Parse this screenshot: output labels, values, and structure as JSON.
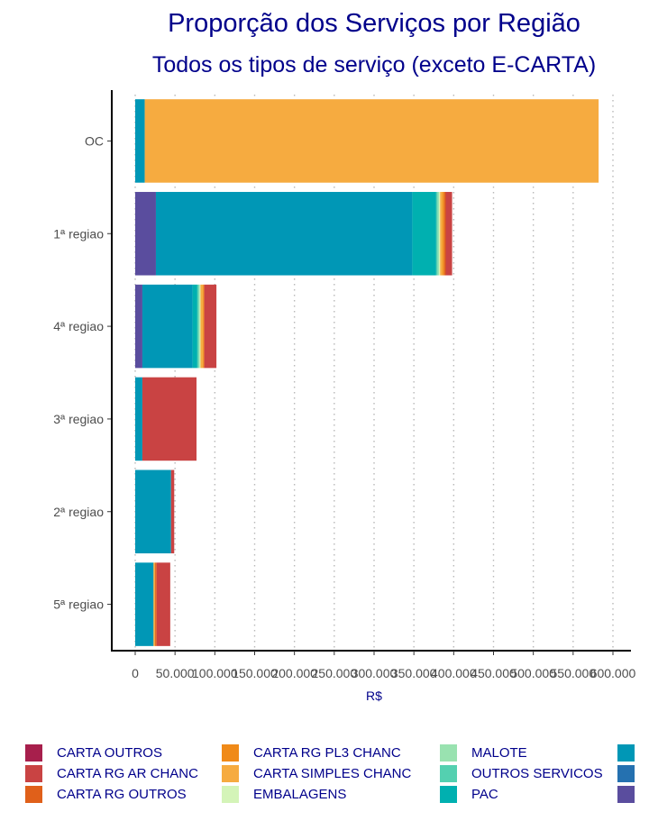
{
  "chart_data": {
    "type": "bar",
    "orientation": "horizontal",
    "stacked": true,
    "title": "Proporção dos Serviços por Região",
    "subtitle": "Todos os tipos de serviço (exceto E-CARTA)",
    "xlabel": "R$",
    "ylabel": "",
    "xlim": [
      0,
      600000
    ],
    "x_ticks": [
      0,
      50000,
      100000,
      150000,
      200000,
      250000,
      300000,
      350000,
      400000,
      450000,
      500000,
      550000,
      600000
    ],
    "x_tick_labels": [
      "0",
      "50.000",
      "100.000",
      "150.000",
      "200.000",
      "250.000",
      "300.000",
      "350.000",
      "400.000",
      "450.000",
      "500.000",
      "550.000",
      "600.000"
    ],
    "grid": "vertical dotted",
    "legend_position": "bottom",
    "categories": [
      "OC",
      "1ª regiao",
      "4ª regiao",
      "3ª regiao",
      "2ª regiao",
      "5ª regiao"
    ],
    "series": [
      {
        "name": "",
        "color": "#5a4d9e",
        "values": [
          0,
          26000,
          9000,
          0,
          0,
          0
        ]
      },
      {
        "name": "",
        "color": "#2571b0",
        "values": [
          0,
          0,
          0,
          0,
          0,
          0
        ]
      },
      {
        "name": "",
        "color": "#0097b6",
        "values": [
          12000,
          322000,
          63000,
          9000,
          45000,
          23000
        ]
      },
      {
        "name": "PAC",
        "color": "#00b0b0",
        "values": [
          0,
          30000,
          6000,
          0,
          0,
          0
        ]
      },
      {
        "name": "OUTROS SERVICOS",
        "color": "#54d0b0",
        "values": [
          0,
          2000,
          2000,
          0,
          0,
          0
        ]
      },
      {
        "name": "MALOTE",
        "color": "#99e2b0",
        "values": [
          0,
          1500,
          1000,
          0,
          0,
          0
        ]
      },
      {
        "name": "EMBALAGENS",
        "color": "#d4f4b8",
        "values": [
          0,
          1500,
          1000,
          0,
          0,
          0
        ]
      },
      {
        "name": "CARTA SIMPLES CHANC",
        "color": "#f6ab40",
        "values": [
          570000,
          3000,
          3000,
          0,
          0,
          2000
        ]
      },
      {
        "name": "CARTA RG PL3 CHANC",
        "color": "#f08a18",
        "values": [
          0,
          2000,
          1000,
          0,
          0,
          0
        ]
      },
      {
        "name": "CARTA RG OUTROS",
        "color": "#e0601a",
        "values": [
          0,
          2000,
          1000,
          0,
          0,
          2000
        ]
      },
      {
        "name": "CARTA RG AR CHANC",
        "color": "#c94343",
        "values": [
          0,
          8000,
          15000,
          68000,
          4000,
          17000
        ]
      },
      {
        "name": "CARTA OUTROS",
        "color": "#a71f4c",
        "values": [
          0,
          0,
          0,
          0,
          0,
          0
        ]
      }
    ],
    "legend": [
      {
        "label": "CARTA OUTROS",
        "color": "#a71f4c"
      },
      {
        "label": "CARTA RG AR CHANC",
        "color": "#c94343"
      },
      {
        "label": "CARTA RG OUTROS",
        "color": "#e0601a"
      },
      {
        "label": "CARTA RG PL3 CHANC",
        "color": "#f08a18"
      },
      {
        "label": "CARTA SIMPLES CHANC",
        "color": "#f6ab40"
      },
      {
        "label": "EMBALAGENS",
        "color": "#d4f4b8"
      },
      {
        "label": "MALOTE",
        "color": "#99e2b0"
      },
      {
        "label": "OUTROS SERVICOS",
        "color": "#54d0b0"
      },
      {
        "label": "PAC",
        "color": "#00b0b0"
      },
      {
        "label": "",
        "color": "#0097b6"
      },
      {
        "label": "",
        "color": "#2571b0"
      },
      {
        "label": "",
        "color": "#5a4d9e"
      }
    ]
  }
}
